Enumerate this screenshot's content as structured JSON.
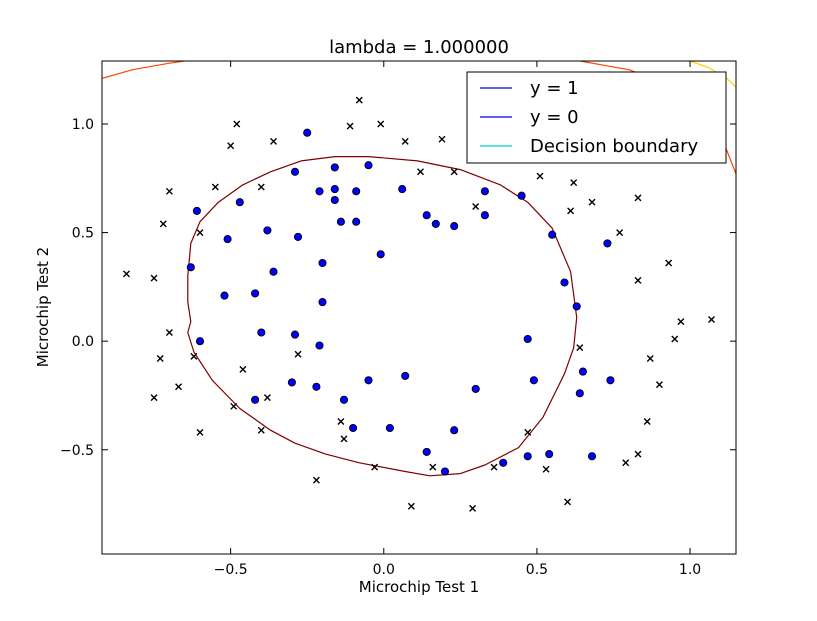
{
  "chart_data": {
    "type": "scatter",
    "title": "lambda = 1.000000",
    "xlabel": "Microchip Test 1",
    "ylabel": "Microchip Test 2",
    "xlim": [
      -0.92,
      1.15
    ],
    "ylim": [
      -0.98,
      1.29
    ],
    "x_ticks": [
      -0.5,
      0.0,
      0.5,
      1.0
    ],
    "x_tick_labels": [
      "−0.5",
      "0.0",
      "0.5",
      "1.0"
    ],
    "y_ticks": [
      -0.5,
      0.0,
      0.5,
      1.0
    ],
    "y_tick_labels": [
      "−0.5",
      "0.0",
      "0.5",
      "1.0"
    ],
    "grid": false,
    "legend": {
      "placement": "top-right",
      "entries": [
        {
          "label": "y = 1",
          "color": "#0000cc"
        },
        {
          "label": "y = 0",
          "color": "#0000ff"
        },
        {
          "label": "Decision boundary",
          "color": "#00ccdd"
        }
      ]
    },
    "series": [
      {
        "name": "y = 1",
        "marker": "circle",
        "color": "#0000ff",
        "points": [
          [
            -0.25,
            0.96
          ],
          [
            -0.29,
            0.78
          ],
          [
            -0.16,
            0.8
          ],
          [
            -0.05,
            0.81
          ],
          [
            -0.21,
            0.69
          ],
          [
            -0.16,
            0.7
          ],
          [
            -0.09,
            0.69
          ],
          [
            -0.16,
            0.65
          ],
          [
            0.06,
            0.7
          ],
          [
            0.33,
            0.69
          ],
          [
            0.45,
            0.67
          ],
          [
            -0.61,
            0.6
          ],
          [
            -0.47,
            0.64
          ],
          [
            -0.14,
            0.55
          ],
          [
            -0.09,
            0.55
          ],
          [
            0.14,
            0.58
          ],
          [
            0.17,
            0.54
          ],
          [
            0.23,
            0.53
          ],
          [
            0.33,
            0.58
          ],
          [
            -0.51,
            0.47
          ],
          [
            -0.38,
            0.51
          ],
          [
            -0.28,
            0.48
          ],
          [
            0.55,
            0.49
          ],
          [
            0.73,
            0.45
          ],
          [
            -0.63,
            0.34
          ],
          [
            -0.36,
            0.32
          ],
          [
            -0.2,
            0.36
          ],
          [
            -0.01,
            0.4
          ],
          [
            -0.52,
            0.21
          ],
          [
            -0.42,
            0.22
          ],
          [
            -0.2,
            0.18
          ],
          [
            0.59,
            0.27
          ],
          [
            0.63,
            0.16
          ],
          [
            -0.6,
            0.0
          ],
          [
            -0.4,
            0.04
          ],
          [
            -0.29,
            0.03
          ],
          [
            -0.21,
            -0.02
          ],
          [
            0.47,
            0.01
          ],
          [
            -0.3,
            -0.19
          ],
          [
            -0.22,
            -0.21
          ],
          [
            -0.05,
            -0.18
          ],
          [
            0.07,
            -0.16
          ],
          [
            0.3,
            -0.22
          ],
          [
            0.49,
            -0.18
          ],
          [
            0.65,
            -0.14
          ],
          [
            0.74,
            -0.18
          ],
          [
            0.64,
            -0.24
          ],
          [
            -0.42,
            -0.27
          ],
          [
            -0.13,
            -0.27
          ],
          [
            -0.1,
            -0.4
          ],
          [
            0.02,
            -0.4
          ],
          [
            0.23,
            -0.41
          ],
          [
            0.14,
            -0.51
          ],
          [
            0.2,
            -0.6
          ],
          [
            0.39,
            -0.56
          ],
          [
            0.47,
            -0.53
          ],
          [
            0.54,
            -0.52
          ],
          [
            0.68,
            -0.53
          ]
        ]
      },
      {
        "name": "y = 0",
        "marker": "x",
        "color": "#000000",
        "points": [
          [
            -0.08,
            1.11
          ],
          [
            -0.48,
            1.0
          ],
          [
            -0.11,
            0.99
          ],
          [
            -0.01,
            1.0
          ],
          [
            -0.5,
            0.9
          ],
          [
            -0.36,
            0.92
          ],
          [
            0.07,
            0.92
          ],
          [
            0.19,
            0.93
          ],
          [
            -0.7,
            0.69
          ],
          [
            -0.55,
            0.71
          ],
          [
            -0.4,
            0.71
          ],
          [
            0.12,
            0.78
          ],
          [
            0.23,
            0.78
          ],
          [
            0.51,
            0.76
          ],
          [
            0.62,
            0.73
          ],
          [
            0.68,
            0.64
          ],
          [
            0.3,
            0.62
          ],
          [
            0.61,
            0.6
          ],
          [
            0.83,
            0.66
          ],
          [
            -0.72,
            0.54
          ],
          [
            -0.6,
            0.5
          ],
          [
            0.77,
            0.5
          ],
          [
            -0.84,
            0.31
          ],
          [
            -0.75,
            0.29
          ],
          [
            0.83,
            0.28
          ],
          [
            0.93,
            0.36
          ],
          [
            -0.7,
            0.04
          ],
          [
            -0.62,
            -0.07
          ],
          [
            -0.28,
            -0.06
          ],
          [
            0.64,
            -0.03
          ],
          [
            0.95,
            0.01
          ],
          [
            0.97,
            0.09
          ],
          [
            1.07,
            0.1
          ],
          [
            -0.73,
            -0.08
          ],
          [
            0.87,
            -0.08
          ],
          [
            -0.67,
            -0.21
          ],
          [
            -0.46,
            -0.13
          ],
          [
            0.9,
            -0.2
          ],
          [
            -0.75,
            -0.26
          ],
          [
            -0.49,
            -0.3
          ],
          [
            -0.38,
            -0.26
          ],
          [
            -0.14,
            -0.37
          ],
          [
            -0.6,
            -0.42
          ],
          [
            -0.4,
            -0.41
          ],
          [
            -0.13,
            -0.45
          ],
          [
            0.47,
            -0.42
          ],
          [
            0.86,
            -0.37
          ],
          [
            -0.03,
            -0.58
          ],
          [
            0.16,
            -0.58
          ],
          [
            0.36,
            -0.58
          ],
          [
            0.53,
            -0.59
          ],
          [
            0.79,
            -0.56
          ],
          [
            0.83,
            -0.52
          ],
          [
            -0.22,
            -0.64
          ],
          [
            0.09,
            -0.76
          ],
          [
            0.29,
            -0.77
          ],
          [
            0.6,
            -0.74
          ]
        ]
      }
    ],
    "decision_boundary": {
      "name": "Decision boundary",
      "contours": [
        {
          "color": "#7f0000",
          "points": [
            [
              -0.16,
              0.85
            ],
            [
              -0.05,
              0.85
            ],
            [
              0.11,
              0.83
            ],
            [
              0.25,
              0.79
            ],
            [
              0.38,
              0.72
            ],
            [
              0.47,
              0.64
            ],
            [
              0.55,
              0.52
            ],
            [
              0.61,
              0.32
            ],
            [
              0.63,
              0.11
            ],
            [
              0.62,
              -0.03
            ],
            [
              0.59,
              -0.15
            ],
            [
              0.52,
              -0.35
            ],
            [
              0.44,
              -0.49
            ],
            [
              0.33,
              -0.57
            ],
            [
              0.25,
              -0.61
            ],
            [
              0.15,
              -0.62
            ],
            [
              0.07,
              -0.6
            ],
            [
              -0.08,
              -0.56
            ],
            [
              -0.19,
              -0.52
            ],
            [
              -0.29,
              -0.47
            ],
            [
              -0.37,
              -0.41
            ],
            [
              -0.47,
              -0.31
            ],
            [
              -0.56,
              -0.18
            ],
            [
              -0.62,
              -0.05
            ],
            [
              -0.64,
              0.04
            ],
            [
              -0.63,
              0.09
            ],
            [
              -0.64,
              0.18
            ],
            [
              -0.64,
              0.3
            ],
            [
              -0.63,
              0.45
            ],
            [
              -0.6,
              0.55
            ],
            [
              -0.54,
              0.64
            ],
            [
              -0.46,
              0.72
            ],
            [
              -0.37,
              0.78
            ],
            [
              -0.27,
              0.83
            ],
            [
              -0.16,
              0.85
            ]
          ]
        },
        {
          "color": "#ff4400",
          "points": [
            [
              -0.92,
              1.21
            ],
            [
              -0.82,
              1.25
            ],
            [
              -0.7,
              1.28
            ],
            [
              -0.6,
              1.3
            ],
            [
              -0.1,
              1.34
            ],
            [
              0.3,
              1.32
            ],
            [
              0.6,
              1.3
            ],
            [
              0.8,
              1.25
            ],
            [
              1.0,
              1.15
            ],
            [
              1.1,
              0.95
            ],
            [
              1.15,
              0.77
            ]
          ]
        },
        {
          "color": "#ffd400",
          "points": [
            [
              1.0,
              1.29
            ],
            [
              1.06,
              1.26
            ],
            [
              1.12,
              1.21
            ],
            [
              1.15,
              1.17
            ]
          ]
        }
      ]
    }
  }
}
